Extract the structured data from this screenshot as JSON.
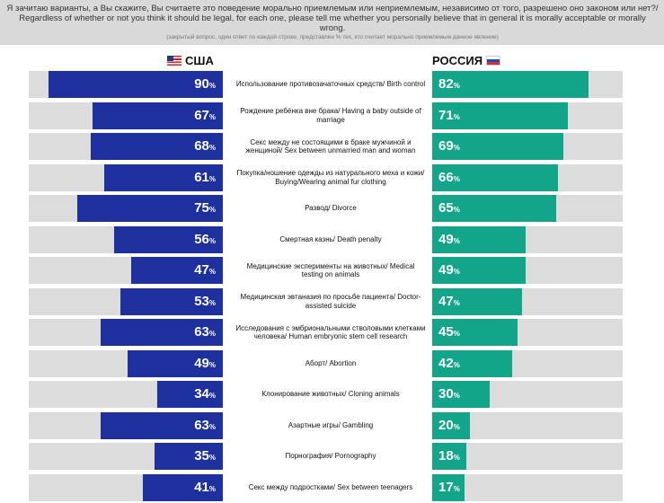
{
  "header": {
    "question": "Я зачитаю варианты, а Вы скажите, Вы считаете это поведение морально приемлемым или неприемлемым, независимо от того, разрешено оно законом или нет?/ Regardless of whether or not you think it should be legal, for each one, please tell me whether you personally believe that in general it is morally acceptable or morally wrong.",
    "note": "(закрытый вопрос, один ответ по каждой строке, представлен % тех, кто считает морально приемлемым данное явление)"
  },
  "chart_data": {
    "type": "bar",
    "categories": [
      "Использование противозачаточных средств/ Birth control",
      "Рождение ребёнка вне брака/ Having a baby outside of marriage",
      "Секс между не состоящими в браке мужчиной и женщиной/ Sex between unmarried man and woman",
      "Покупка/ношение одежды из натурального меха и кожи/ Buying/Wearing animal fur clothing",
      "Развод/ Divorce",
      "Смертная казнь/ Death penalty",
      "Медицинские эксперименты на животных/ Medical testing on animals",
      "Медицинская эвтаназия по просьбе пациента/ Doctor-assisted suicide",
      "Исследования с эмбриональными стволовыми клетками человека/ Human embryonic stem cell research",
      "Аборт/ Abortion",
      "Клонирование животных/ Cloning animals",
      "Азартные игры/ Gambling",
      "Порнография/ Pornography",
      "Секс между подростками/ Sex between teenagers"
    ],
    "series": [
      {
        "name": "США",
        "color": "#1e2f9e",
        "values": [
          90,
          67,
          68,
          61,
          75,
          56,
          47,
          53,
          63,
          49,
          34,
          63,
          35,
          41
        ]
      },
      {
        "name": "РОССИЯ",
        "color": "#13a58a",
        "values": [
          82,
          71,
          69,
          66,
          65,
          49,
          49,
          47,
          45,
          42,
          30,
          20,
          18,
          17
        ]
      }
    ],
    "unit": "%",
    "ylim": [
      0,
      100
    ],
    "track_color": "#dcdcdc"
  }
}
